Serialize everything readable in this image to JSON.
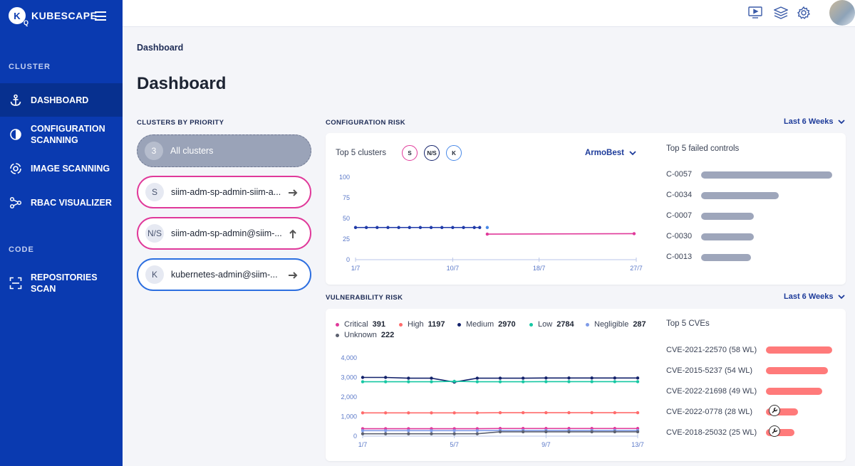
{
  "brand": {
    "name": "KUBESCAPE",
    "logo_letter": "K",
    "logo_sub": "Q"
  },
  "sidebar": {
    "sections": [
      {
        "label": "CLUSTER"
      },
      {
        "label": "CODE"
      }
    ],
    "items": [
      {
        "label": "DASHBOARD",
        "icon": "anchor-icon",
        "active": true
      },
      {
        "label": "CONFIGURATION SCANNING",
        "icon": "configuration-icon"
      },
      {
        "label": "IMAGE SCANNING",
        "icon": "image-scan-icon"
      },
      {
        "label": "RBAC VISUALIZER",
        "icon": "rbac-graph-icon"
      },
      {
        "label": "REPOSITORIES SCAN",
        "icon": "scan-frame-icon"
      }
    ]
  },
  "topbar": {
    "icons": [
      "video-icon",
      "layers-icon",
      "gear-icon",
      "user-avatar"
    ]
  },
  "breadcrumb": "Dashboard",
  "page_title": "Dashboard",
  "clusters": {
    "title": "CLUSTERS BY PRIORITY",
    "all": {
      "count": "3",
      "label": "All clusters"
    },
    "items": [
      {
        "badge": "S",
        "name": "siim-adm-sp-admin-siim-a...",
        "color": "#e0399a",
        "arrow": "right"
      },
      {
        "badge": "N/S",
        "name": "siim-adm-sp-admin@siim-...",
        "color": "#e0399a",
        "arrow": "up"
      },
      {
        "badge": "K",
        "name": "kubernetes-admin@siim-...",
        "color": "#2d6fe0",
        "arrow": "right"
      }
    ]
  },
  "config_risk": {
    "title": "CONFIGURATION RISK",
    "range": "Last 6 Weeks",
    "top_clusters_label": "Top 5 clusters",
    "cluster_badges": [
      {
        "label": "S",
        "color": "#e0399a"
      },
      {
        "label": "N/S",
        "color": "#13226b"
      },
      {
        "label": "K",
        "color": "#4a8ae8"
      }
    ],
    "framework": "ArmoBest",
    "top_controls_label": "Top 5 failed controls",
    "controls": [
      {
        "id": "C-0057",
        "value": 1.0
      },
      {
        "id": "C-0034",
        "value": 0.59
      },
      {
        "id": "C-0007",
        "value": 0.4
      },
      {
        "id": "C-0030",
        "value": 0.4
      },
      {
        "id": "C-0013",
        "value": 0.38
      }
    ]
  },
  "vuln_risk": {
    "title": "VULNERABILITY RISK",
    "range": "Last 6 Weeks",
    "legend": [
      {
        "label": "Critical",
        "value": "391",
        "color": "#e0399a"
      },
      {
        "label": "High",
        "value": "1197",
        "color": "#ff6b6b"
      },
      {
        "label": "Medium",
        "value": "2970",
        "color": "#13226b"
      },
      {
        "label": "Low",
        "value": "2784",
        "color": "#16c7a3"
      },
      {
        "label": "Negligible",
        "value": "287",
        "color": "#7f9be8"
      },
      {
        "label": "Unknown",
        "value": "222",
        "color": "#5c6170"
      }
    ],
    "top_cves_label": "Top 5 CVEs",
    "cves": [
      {
        "label": "CVE-2021-22570 (58 WL)",
        "value": 58,
        "wrench": false
      },
      {
        "label": "CVE-2015-5237 (54 WL)",
        "value": 54,
        "wrench": false
      },
      {
        "label": "CVE-2022-21698 (49 WL)",
        "value": 49,
        "wrench": false
      },
      {
        "label": "CVE-2022-0778 (28 WL)",
        "value": 28,
        "wrench": true
      },
      {
        "label": "CVE-2018-25032 (25 WL)",
        "value": 25,
        "wrench": true
      }
    ]
  },
  "chart_data": [
    {
      "type": "line",
      "title": "",
      "xlabel": "",
      "ylabel": "",
      "x_ticks": [
        "1/7",
        "10/7",
        "18/7",
        "27/7"
      ],
      "y_ticks": [
        "0",
        "25",
        "50",
        "75",
        "100"
      ],
      "ylim": [
        0,
        100
      ],
      "grid": false,
      "series": [
        {
          "name": "N/S",
          "color": "#1f3aa8",
          "x": [
            0,
            1,
            2,
            3,
            4,
            5,
            6,
            7,
            8,
            9,
            10,
            11,
            11.5
          ],
          "y": [
            39,
            39,
            39,
            39,
            39,
            39,
            39,
            39,
            39,
            39,
            39,
            39,
            39
          ]
        },
        {
          "name": "K",
          "color": "#4a8ae8",
          "x": [
            12.2
          ],
          "y": [
            39
          ]
        },
        {
          "name": "S",
          "color": "#e0399a",
          "x": [
            12.2,
            25.8
          ],
          "y": [
            31,
            31.5
          ]
        }
      ],
      "x_max": 26
    },
    {
      "type": "line",
      "title": "",
      "xlabel": "",
      "ylabel": "",
      "x_ticks": [
        "1/7",
        "5/7",
        "9/7",
        "13/7"
      ],
      "y_ticks": [
        "0",
        "1,000",
        "2,000",
        "3,000",
        "4,000"
      ],
      "ylim": [
        0,
        4000
      ],
      "grid": false,
      "x_max": 12,
      "series": [
        {
          "name": "Medium",
          "color": "#13226b",
          "x": [
            0,
            1,
            2,
            3,
            4,
            5,
            6,
            7,
            8,
            9,
            10,
            11,
            12
          ],
          "y": [
            3000,
            3000,
            2960,
            2960,
            2760,
            2960,
            2960,
            2960,
            2970,
            2970,
            2970,
            2970,
            2970
          ]
        },
        {
          "name": "Low",
          "color": "#16c7a3",
          "x": [
            0,
            1,
            2,
            3,
            4,
            5,
            6,
            7,
            8,
            9,
            10,
            11,
            12
          ],
          "y": [
            2780,
            2780,
            2780,
            2780,
            2800,
            2780,
            2780,
            2780,
            2784,
            2784,
            2784,
            2784,
            2784
          ]
        },
        {
          "name": "High",
          "color": "#ff6b6b",
          "x": [
            0,
            1,
            2,
            3,
            4,
            5,
            6,
            7,
            8,
            9,
            10,
            11,
            12
          ],
          "y": [
            1190,
            1190,
            1190,
            1190,
            1190,
            1190,
            1197,
            1197,
            1197,
            1197,
            1197,
            1197,
            1197
          ]
        },
        {
          "name": "Critical",
          "color": "#e0399a",
          "x": [
            0,
            1,
            2,
            3,
            4,
            5,
            6,
            7,
            8,
            9,
            10,
            11,
            12
          ],
          "y": [
            380,
            380,
            380,
            380,
            380,
            380,
            391,
            391,
            391,
            391,
            391,
            391,
            391
          ]
        },
        {
          "name": "Negligible",
          "color": "#7f9be8",
          "x": [
            0,
            1,
            2,
            3,
            4,
            5,
            6,
            7,
            8,
            9,
            10,
            11,
            12
          ],
          "y": [
            280,
            280,
            280,
            280,
            280,
            280,
            287,
            287,
            287,
            287,
            287,
            287,
            287
          ]
        },
        {
          "name": "Unknown",
          "color": "#5c6170",
          "x": [
            0,
            1,
            2,
            3,
            4,
            5,
            6,
            7,
            8,
            9,
            10,
            11,
            12
          ],
          "y": [
            120,
            120,
            120,
            120,
            120,
            120,
            222,
            222,
            222,
            222,
            222,
            222,
            222
          ]
        }
      ]
    }
  ]
}
